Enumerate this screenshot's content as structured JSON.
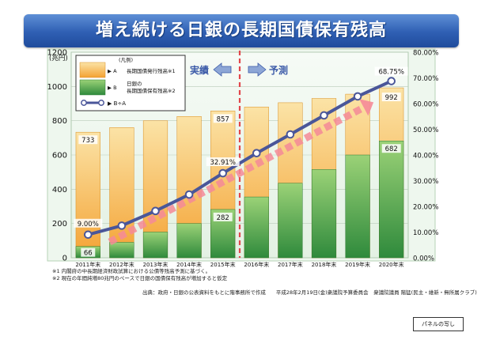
{
  "title": "増え続ける日銀の長期国債保有残高",
  "chart_data": {
    "type": "bar",
    "categories": [
      "2011年末",
      "2012年末",
      "2013年末",
      "2014年末",
      "2015年末",
      "2016年末",
      "2017年末",
      "2018年末",
      "2019年末",
      "2020年末"
    ],
    "series": [
      {
        "name": "長期国債発行残高※1",
        "marker": "A",
        "values": [
          733,
          760,
          800,
          825,
          857,
          880,
          905,
          930,
          955,
          992
        ]
      },
      {
        "name": "日銀の長期国債保有残高※2",
        "marker": "B",
        "values": [
          66,
          90,
          150,
          200,
          282,
          355,
          435,
          515,
          600,
          682
        ]
      },
      {
        "name": "B÷A",
        "values": [
          9.0,
          12.5,
          18.2,
          24.6,
          32.91,
          40.7,
          48.0,
          55.4,
          62.8,
          68.75
        ]
      }
    ],
    "ylabel": "(兆円)",
    "ylim": [
      0,
      1200
    ],
    "yticks": [
      0,
      200,
      400,
      600,
      800,
      1000,
      1200
    ],
    "y2lim": [
      0,
      80
    ],
    "y2ticks": [
      "0.00%",
      "10.00%",
      "20.00%",
      "30.00%",
      "40.00%",
      "50.00%",
      "60.00%",
      "70.00%",
      "80.00%"
    ],
    "data_labels": {
      "a_2011": "733",
      "a_2015": "857",
      "a_2020": "992",
      "b_2011": "66",
      "b_2015": "282",
      "b_2020": "682",
      "r_2011": "9.00%",
      "r_2015": "32.91%",
      "r_2020": "68.75%"
    },
    "legend": {
      "heading": "(凡例)",
      "a_label": "長期国債発行残高※1",
      "b_label_1": "日銀の",
      "b_label_2": "長期国債保有残高※2",
      "ratio_label": "B÷A",
      "placement": "top-left"
    },
    "annotations": {
      "actual": "実績",
      "forecast": "予測"
    },
    "grid": true
  },
  "notes": [
    "※1 内閣府の中長期経済財政試算における公債等残高予測に基づく。",
    "※2 現在の年間純増80兆円のペースで日銀の国債保有残高が増加すると仮定"
  ],
  "source": "出典：政府・日銀の公表資料をもとに階事務所で作成　　平成28年2月19日(金)衆議院予算委員会　衆議院議員 階猛(民主・維新・無所属クラブ)",
  "panel_label": "パネルの写し",
  "colors": {
    "bar_a_top": "#fbe3a6",
    "bar_a_bottom": "#f4a233",
    "bar_b_top": "#9bd277",
    "bar_b_bottom": "#2f8a3c",
    "ratio_line": "#4a5699",
    "ratio_marker_fill": "#ffffff",
    "title_bg": "#2f5fb3",
    "plot_bg": "#eef7ee",
    "divider": "#e2464b",
    "trend_arrow": "#f58a98"
  }
}
